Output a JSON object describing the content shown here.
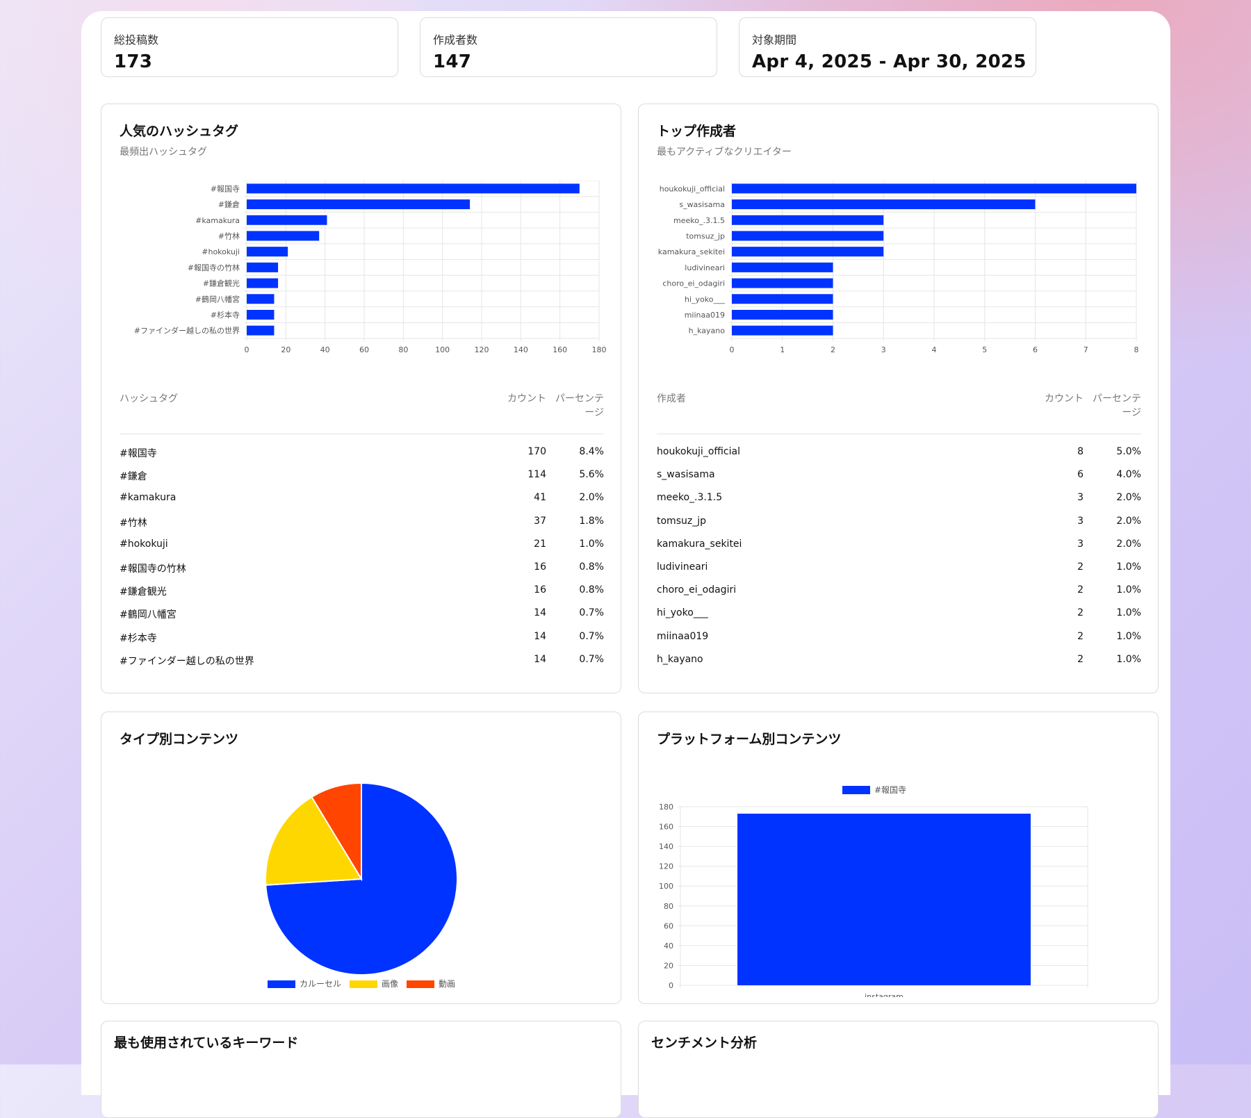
{
  "stats": [
    {
      "label": "総投稿数",
      "value": "173"
    },
    {
      "label": "作成者数",
      "value": "147"
    },
    {
      "label": "対象期間",
      "value": "Apr 4, 2025 - Apr 30, 2025"
    }
  ],
  "hashtags": {
    "title": "人気のハッシュタグ",
    "subtitle": "最頻出ハッシュタグ",
    "table_headers": {
      "name": "ハッシュタグ",
      "count": "カウント",
      "pct_line1": "パーセンテ",
      "pct_line2": "ージ"
    },
    "rows": [
      {
        "name": "#報国寺",
        "count": "170",
        "pct": "8.4%"
      },
      {
        "name": "#鎌倉",
        "count": "114",
        "pct": "5.6%"
      },
      {
        "name": "#kamakura",
        "count": "41",
        "pct": "2.0%"
      },
      {
        "name": "#竹林",
        "count": "37",
        "pct": "1.8%"
      },
      {
        "name": "#hokokuji",
        "count": "21",
        "pct": "1.0%"
      },
      {
        "name": "#報国寺の竹林",
        "count": "16",
        "pct": "0.8%"
      },
      {
        "name": "#鎌倉観光",
        "count": "16",
        "pct": "0.8%"
      },
      {
        "name": "#鶴岡八幡宮",
        "count": "14",
        "pct": "0.7%"
      },
      {
        "name": "#杉本寺",
        "count": "14",
        "pct": "0.7%"
      },
      {
        "name": "#ファインダー越しの私の世界",
        "count": "14",
        "pct": "0.7%"
      }
    ]
  },
  "creators": {
    "title": "トップ作成者",
    "subtitle": "最もアクティブなクリエイター",
    "table_headers": {
      "name": "作成者",
      "count": "カウント",
      "pct_line1": "パーセンテ",
      "pct_line2": "ージ"
    },
    "rows": [
      {
        "name": "houkokuji_official",
        "count": "8",
        "pct": "5.0%"
      },
      {
        "name": "s_wasisama",
        "count": "6",
        "pct": "4.0%"
      },
      {
        "name": "meeko_.3.1.5",
        "count": "3",
        "pct": "2.0%"
      },
      {
        "name": "tomsuz_jp",
        "count": "3",
        "pct": "2.0%"
      },
      {
        "name": "kamakura_sekitei",
        "count": "3",
        "pct": "2.0%"
      },
      {
        "name": "ludivineari",
        "count": "2",
        "pct": "1.0%"
      },
      {
        "name": "choro_ei_odagiri",
        "count": "2",
        "pct": "1.0%"
      },
      {
        "name": "hi_yoko___",
        "count": "2",
        "pct": "1.0%"
      },
      {
        "name": "miinaa019",
        "count": "2",
        "pct": "1.0%"
      },
      {
        "name": "h_kayano",
        "count": "2",
        "pct": "1.0%"
      }
    ]
  },
  "type_content": {
    "title": "タイプ別コンテンツ"
  },
  "platform_content": {
    "title": "プラットフォーム別コンテンツ"
  },
  "keywords": {
    "title": "最も使用されているキーワード"
  },
  "sentiment": {
    "title": "センチメント分析"
  },
  "colors": {
    "blue": "#0033ff",
    "yellow": "#ffd700",
    "orange": "#ff4500",
    "grid": "#e6e6e6"
  },
  "chart_data": [
    {
      "type": "bar",
      "orientation": "horizontal",
      "categories": [
        "#報国寺",
        "#鎌倉",
        "#kamakura",
        "#竹林",
        "#hokokuji",
        "#報国寺の竹林",
        "#鎌倉観光",
        "#鶴岡八幡宮",
        "#杉本寺",
        "#ファインダー越しの私の世界"
      ],
      "values": [
        170,
        114,
        41,
        37,
        21,
        16,
        16,
        14,
        14,
        14
      ],
      "xlim": [
        0,
        180
      ],
      "ticks": [
        0,
        20,
        40,
        60,
        80,
        100,
        120,
        140,
        160,
        180
      ],
      "grid": true
    },
    {
      "type": "bar",
      "orientation": "horizontal",
      "categories": [
        "houkokuji_official",
        "s_wasisama",
        "meeko_.3.1.5",
        "tomsuz_jp",
        "kamakura_sekitei",
        "ludivineari",
        "choro_ei_odagiri",
        "hi_yoko___",
        "miinaa019",
        "h_kayano"
      ],
      "values": [
        8,
        6,
        3,
        3,
        3,
        2,
        2,
        2,
        2,
        2
      ],
      "xlim": [
        0,
        8
      ],
      "ticks": [
        0,
        1,
        2,
        3,
        4,
        5,
        6,
        7,
        8
      ],
      "grid": true
    },
    {
      "type": "pie",
      "labels": [
        "カルーセル",
        "画像",
        "動画"
      ],
      "values": [
        128,
        30,
        15
      ],
      "colors": [
        "#0033ff",
        "#ffd700",
        "#ff4500"
      ],
      "legend": "bottom"
    },
    {
      "type": "bar",
      "categories": [
        "instagram"
      ],
      "series": [
        {
          "name": "#報国寺",
          "values": [
            173
          ]
        }
      ],
      "ylim": [
        0,
        180
      ],
      "ticks": [
        0,
        20,
        40,
        60,
        80,
        100,
        120,
        140,
        160,
        180
      ],
      "legend": "top",
      "grid": true
    }
  ]
}
